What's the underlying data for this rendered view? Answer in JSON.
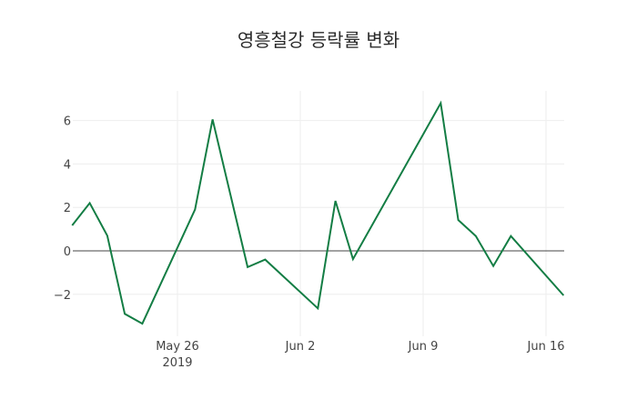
{
  "title": "영흥철강 등락률 변화",
  "colors": {
    "line": "#137d44",
    "grid": "#eeeeee",
    "zeroline": "#444444",
    "background": "#ffffff"
  },
  "chart_data": {
    "type": "line",
    "title": "영흥철강 등락률 변화",
    "xlabel": "",
    "ylabel": "",
    "x": [
      "2019-05-20",
      "2019-05-21",
      "2019-05-22",
      "2019-05-23",
      "2019-05-24",
      "2019-05-27",
      "2019-05-28",
      "2019-05-30",
      "2019-05-31",
      "2019-06-03",
      "2019-06-04",
      "2019-06-05",
      "2019-06-10",
      "2019-06-11",
      "2019-06-12",
      "2019-06-13",
      "2019-06-14",
      "2019-06-17"
    ],
    "series": [
      {
        "name": "등락률",
        "values": [
          1.17,
          2.2,
          0.7,
          -2.9,
          -3.35,
          1.9,
          6.05,
          -0.75,
          -0.4,
          -2.65,
          2.3,
          -0.38,
          6.8,
          1.42,
          0.68,
          -0.7,
          0.68,
          -2.05
        ]
      }
    ],
    "ylim": [
      -3.7,
      7.3
    ],
    "yticks": [
      -2,
      0,
      2,
      4,
      6
    ],
    "ytick_labels": [
      "−2",
      "0",
      "2",
      "4",
      "6"
    ],
    "xticks": [
      "2019-05-26",
      "2019-06-02",
      "2019-06-09",
      "2019-06-16"
    ],
    "xtick_labels": [
      "May 26",
      "Jun 2",
      "Jun 9",
      "Jun 16"
    ],
    "xtick_sublabel": "2019",
    "grid": true,
    "legend": "none"
  }
}
